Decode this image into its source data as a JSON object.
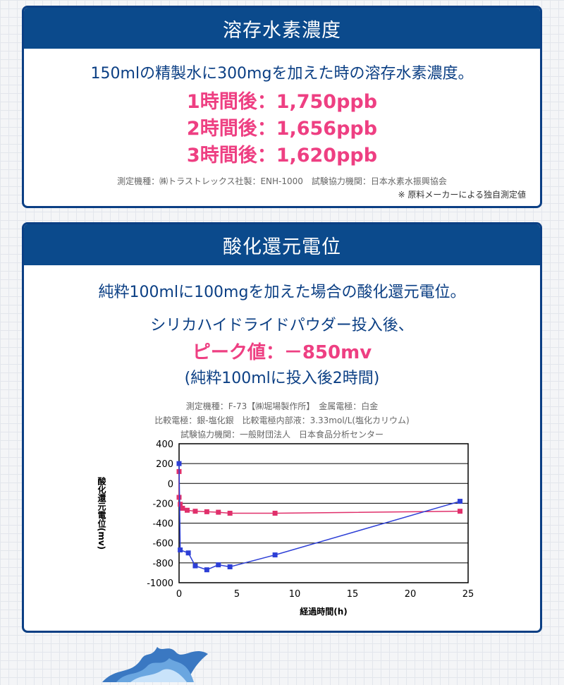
{
  "section1": {
    "title": "溶存水素濃度",
    "lead": "150mlの精製水に300mgを加えた時の溶存水素濃度。",
    "results": [
      "1時間後：1,750ppb",
      "2時間後：1,656ppb",
      "3時間後：1,620ppb"
    ],
    "note": "測定機種：㈱トラストレックス社製：ENH-1000　試験協力機関：日本水素水振興協会",
    "note2": "※ 原料メーカーによる独自測定値"
  },
  "section2": {
    "title": "酸化還元電位",
    "lead": "純粋100mlに100mgを加えた場合の酸化還元電位。",
    "sub": "シリカハイドライドパウダー投入後、",
    "peak": "ピーク値：－850mv",
    "paren": "(純粋100mlに投入後2時間)",
    "notes": [
      "測定機種：F-73【㈱堀場製作所】　金属電極：白金",
      "比較電極：銀-塩化銀　比較電極内部液：3.33mol/L(塩化カリウム)",
      "試験協力機関：一般財団法人　日本食品分析センター"
    ]
  },
  "chart_data": {
    "type": "line",
    "xlabel": "経過時間(h)",
    "ylabel": "酸化還元電位(mv)",
    "xlim": [
      0,
      25
    ],
    "ylim": [
      -1000,
      400
    ],
    "xticks": [
      "0",
      "5",
      "10",
      "15",
      "20",
      "25"
    ],
    "yticks": [
      "400",
      "200",
      "0",
      "-200",
      "-400",
      "-600",
      "-800",
      "-1000"
    ],
    "grid": "horizontal",
    "series": [
      {
        "color": "#e0306b",
        "x": [
          0,
          0,
          0.1,
          0.3,
          0.7,
          1.4,
          2.4,
          3.4,
          4.4,
          8.3,
          24.3
        ],
        "y": [
          120,
          -140,
          -210,
          -250,
          -270,
          -280,
          -285,
          -290,
          -300,
          -300,
          -280
        ]
      },
      {
        "color": "#2d3fd6",
        "x": [
          0,
          0.1,
          0.8,
          1.4,
          2.4,
          3.4,
          4.4,
          8.3,
          24.3
        ],
        "y": [
          200,
          -670,
          -700,
          -830,
          -870,
          -820,
          -840,
          -720,
          -180
        ]
      }
    ]
  }
}
